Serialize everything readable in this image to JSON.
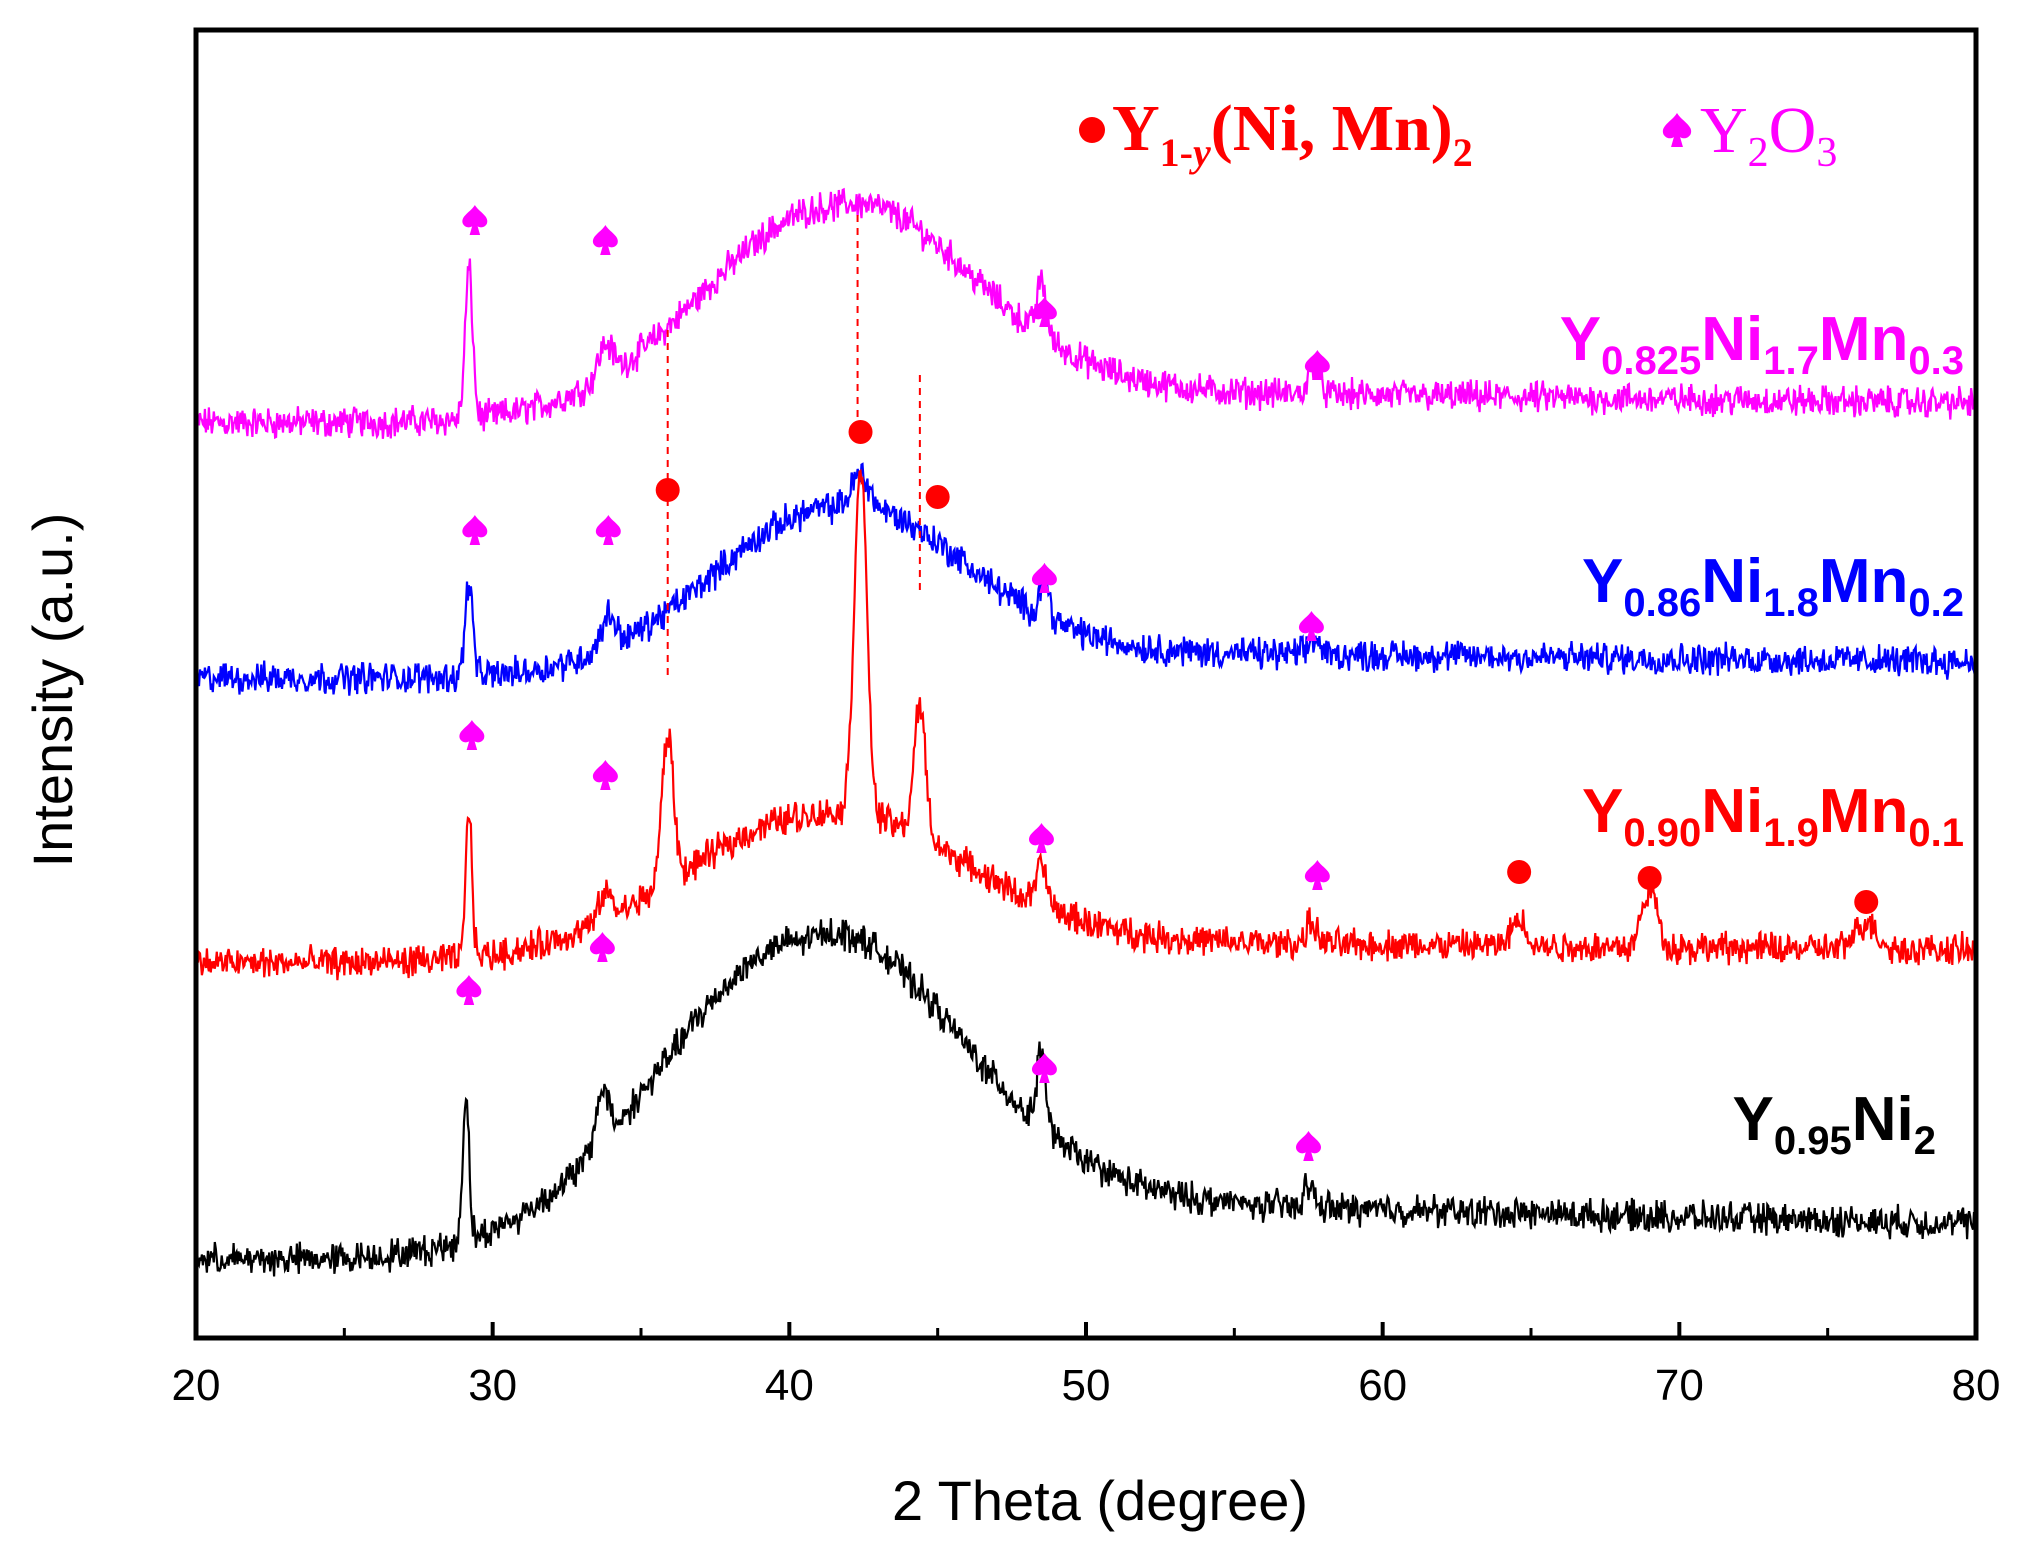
{
  "chart_data": {
    "type": "line",
    "title": "",
    "xlabel": "2 Theta (degree)",
    "ylabel": "Intensity (a.u.)",
    "xlim": [
      20,
      80
    ],
    "y_ticks_shown": false,
    "x_ticks": [
      20,
      30,
      40,
      50,
      60,
      70,
      80
    ],
    "x_tick_labels": [
      "20",
      "30",
      "40",
      "50",
      "60",
      "70",
      "80"
    ],
    "legend": {
      "placement": "top-right",
      "items": [
        {
          "marker": "●",
          "label_main": "Y",
          "label_sub": "1-",
          "label_sub_italic": "y",
          "label_rest": "(Ni, Mn)",
          "label_sub2": "2",
          "color": "#ff0000"
        },
        {
          "marker": "♠",
          "label_main": "Y",
          "label_sub": "2",
          "label_rest": "O",
          "label_sub2": "3",
          "color": "#ff00ff"
        }
      ]
    },
    "series": [
      {
        "name": "Y0.825Ni1.7Mn0.3",
        "label_parts": [
          [
            "Y",
            ""
          ],
          [
            "0.825",
            "sub"
          ],
          [
            "Ni",
            ""
          ],
          [
            "1.7",
            "sub"
          ],
          [
            "Mn",
            ""
          ],
          [
            "0.3",
            "sub"
          ]
        ],
        "color": "#ff00ff",
        "offset": 3,
        "baseline": 0.12,
        "hump": {
          "center": 41.5,
          "width": 6.2,
          "height": 0.8
        },
        "tail": 0.12,
        "peaks": [
          {
            "x": 29.2,
            "h": 0.55,
            "w": 0.18
          },
          {
            "x": 33.8,
            "h": 0.12,
            "w": 0.35
          },
          {
            "x": 48.5,
            "h": 0.2,
            "w": 0.22
          },
          {
            "x": 57.7,
            "h": 0.12,
            "w": 0.25
          }
        ]
      },
      {
        "name": "Y0.86Ni1.8Mn0.2",
        "label_parts": [
          [
            "Y",
            ""
          ],
          [
            "0.86",
            "sub"
          ],
          [
            "Ni",
            ""
          ],
          [
            "1.8",
            "sub"
          ],
          [
            "Mn",
            ""
          ],
          [
            "0.2",
            "sub"
          ]
        ],
        "color": "#0000ff",
        "offset": 2,
        "baseline": 0.1,
        "hump": {
          "center": 41.5,
          "width": 5.8,
          "height": 0.63
        },
        "tail": 0.1,
        "peaks": [
          {
            "x": 29.2,
            "h": 0.35,
            "w": 0.18
          },
          {
            "x": 33.9,
            "h": 0.12,
            "w": 0.35
          },
          {
            "x": 42.4,
            "h": 0.12,
            "w": 0.4
          },
          {
            "x": 48.6,
            "h": 0.15,
            "w": 0.22
          },
          {
            "x": 57.7,
            "h": 0.06,
            "w": 0.25
          }
        ]
      },
      {
        "name": "Y0.90Ni1.9Mn0.1",
        "label_parts": [
          [
            "Y",
            ""
          ],
          [
            "0.90",
            "sub"
          ],
          [
            "Ni",
            ""
          ],
          [
            "1.9",
            "sub"
          ],
          [
            "Mn",
            ""
          ],
          [
            "0.1",
            "sub"
          ]
        ],
        "color": "#ff0000",
        "offset": 1,
        "baseline": 0.1,
        "hump": {
          "center": 41.0,
          "width": 6.5,
          "height": 0.55
        },
        "tail": 0.08,
        "peaks": [
          {
            "x": 29.2,
            "h": 0.55,
            "w": 0.15
          },
          {
            "x": 33.8,
            "h": 0.1,
            "w": 0.3
          },
          {
            "x": 35.9,
            "h": 0.55,
            "w": 0.28
          },
          {
            "x": 42.4,
            "h": 1.3,
            "w": 0.3
          },
          {
            "x": 44.4,
            "h": 0.48,
            "w": 0.28
          },
          {
            "x": 48.5,
            "h": 0.15,
            "w": 0.25
          },
          {
            "x": 57.6,
            "h": 0.08,
            "w": 0.25
          },
          {
            "x": 64.6,
            "h": 0.1,
            "w": 0.35
          },
          {
            "x": 69.0,
            "h": 0.22,
            "w": 0.35
          },
          {
            "x": 76.3,
            "h": 0.1,
            "w": 0.5
          }
        ]
      },
      {
        "name": "Y0.95Ni2",
        "label_parts": [
          [
            "Y",
            ""
          ],
          [
            "0.95",
            "sub"
          ],
          [
            "Ni",
            ""
          ],
          [
            "2",
            "sub"
          ]
        ],
        "color": "#000000",
        "offset": 0,
        "baseline": 0.02,
        "hump": {
          "center": 40.5,
          "width": 6.8,
          "height": 1.18
        },
        "tail": 0.22,
        "peaks": [
          {
            "x": 29.1,
            "h": 0.55,
            "w": 0.15
          },
          {
            "x": 33.7,
            "h": 0.2,
            "w": 0.3
          },
          {
            "x": 48.5,
            "h": 0.3,
            "w": 0.2
          },
          {
            "x": 57.5,
            "h": 0.08,
            "w": 0.25
          }
        ]
      }
    ],
    "markers": [
      {
        "series": 0,
        "type": "spade",
        "x": 29.4
      },
      {
        "series": 0,
        "type": "spade",
        "x": 33.8
      },
      {
        "series": 0,
        "type": "spade",
        "x": 48.6
      },
      {
        "series": 0,
        "type": "spade",
        "x": 57.8
      },
      {
        "series": 1,
        "type": "spade",
        "x": 29.4
      },
      {
        "series": 1,
        "type": "spade",
        "x": 33.9
      },
      {
        "series": 1,
        "type": "circle",
        "x": 35.9
      },
      {
        "series": 1,
        "type": "circle",
        "x": 42.4
      },
      {
        "series": 1,
        "type": "circle",
        "x": 45.0
      },
      {
        "series": 1,
        "type": "spade",
        "x": 48.6
      },
      {
        "series": 1,
        "type": "spade",
        "x": 57.6
      },
      {
        "series": 2,
        "type": "spade",
        "x": 29.3
      },
      {
        "series": 2,
        "type": "spade",
        "x": 33.8
      },
      {
        "series": 2,
        "type": "spade",
        "x": 48.5
      },
      {
        "series": 2,
        "type": "spade",
        "x": 57.8
      },
      {
        "series": 2,
        "type": "circle",
        "x": 64.6
      },
      {
        "series": 2,
        "type": "circle",
        "x": 69.0
      },
      {
        "series": 2,
        "type": "circle",
        "x": 76.3
      },
      {
        "series": 3,
        "type": "spade",
        "x": 29.2
      },
      {
        "series": 3,
        "type": "spade",
        "x": 33.7
      },
      {
        "series": 3,
        "type": "spade",
        "x": 48.6
      },
      {
        "series": 3,
        "type": "spade",
        "x": 57.5
      }
    ],
    "dashed_reference_lines": [
      35.9,
      42.3,
      44.4
    ],
    "colors": {
      "spade": "#ff00ff",
      "circle": "#ff0000",
      "dashed": "#ff0000",
      "axis": "#000000"
    }
  }
}
